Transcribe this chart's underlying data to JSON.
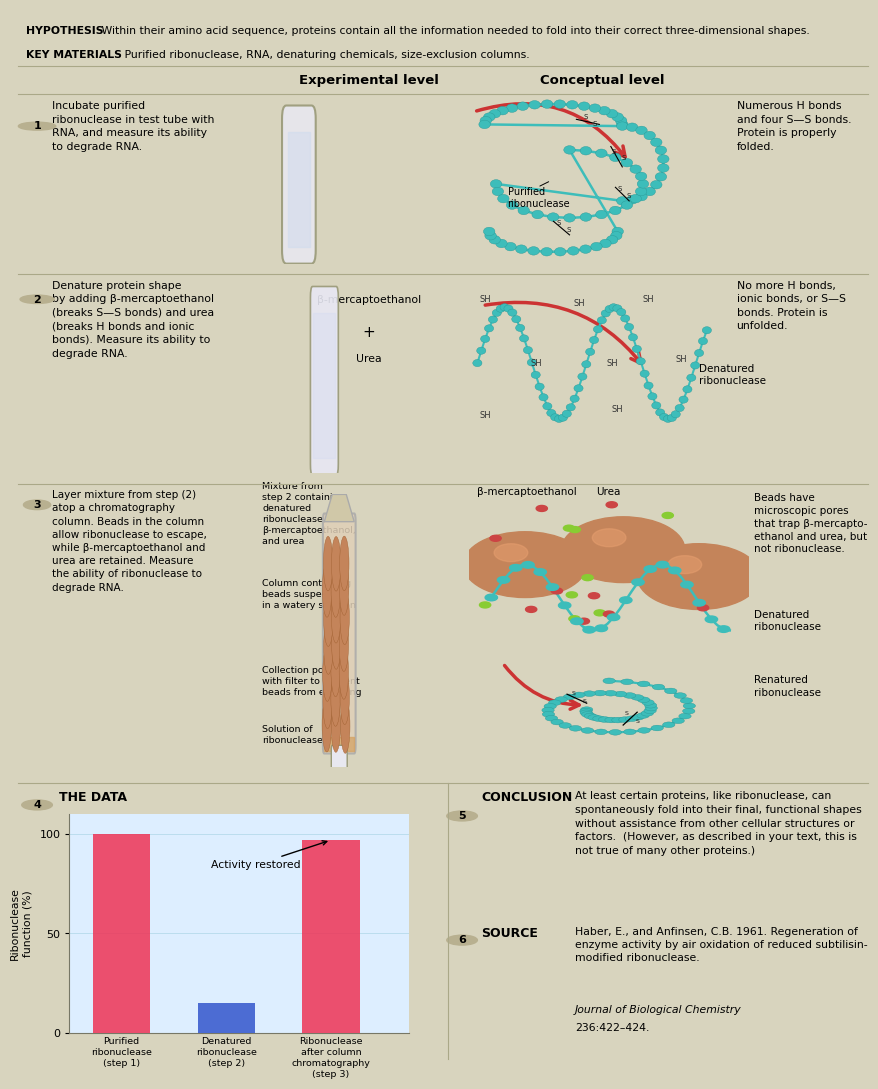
{
  "bg_tan": "#d8d4be",
  "bg_light_tan": "#e4e0cc",
  "border_color": "#aaa888",
  "teal": "#3dbdba",
  "teal_dark": "#2a9a98",
  "arrow_red": "#cc3333",
  "bead_brown": "#c4845a",
  "green_dot": "#88cc33",
  "hypothesis_bold": "HYPOTHESIS",
  "hypothesis_text": " Within their amino acid sequence, proteins contain all the information needed to fold into their correct three-dimensional shapes.",
  "keymaterials_bold": "KEY MATERIALS",
  "keymaterials_text": " Purified ribonuclease, RNA, denaturing chemicals, size-exclusion columns.",
  "exp_level_title": "Experimental level",
  "concept_level_title": "Conceptual level",
  "step1_num": "1",
  "step1_text": "Incubate purified\nribonuclease in test tube with\nRNA, and measure its ability\nto degrade RNA.",
  "step1_label_purified": "Purified\nribonuclease",
  "step1_right": "Numerous H bonds\nand four S—S bonds.\nProtein is properly\nfolded.",
  "step2_num": "2",
  "step2_text": "Denature protein shape\nby adding β-mercaptoethanol\n(breaks S—S bonds) and urea\n(breaks H bonds and ionic\nbonds). Measure its ability to\ndegrade RNA.",
  "step2_reagent1": "β-mercaptoethanol",
  "step2_reagent2": "+",
  "step2_reagent3": "Urea",
  "step2_right": "No more H bonds,\nionic bonds, or S—S\nbonds. Protein is\nunfolded.",
  "step2_label": "Denatured\nribonuclease",
  "step3_num": "3",
  "step3_text": "Layer mixture from step (2)\natop a chromatography\ncolumn. Beads in the column\nallow ribonuclease to escape,\nwhile β-mercaptoethanol and\nurea are retained. Measure\nthe ability of ribonuclease to\ndegrade RNA.",
  "step3_col_labels": [
    "Mixture from\nstep 2 containing\ndenatured\nribonuclease,\nβ-mercaptoethanol,\nand urea",
    "Column containing\nbeads suspended\nin a watery solution",
    "Collection port\nwith filter to prevent\nbeads from escaping",
    "Solution of\nribonuclease"
  ],
  "step3_right_top": "Beads have\nmicroscopic pores\nthat trap β-mercapto-\nethanol and urea, but\nnot ribonuclease.",
  "step3_beta_label": "β-mercaptoethanol",
  "step3_urea_label": "Urea",
  "step3_denatured_label": "Denatured\nribonuclease",
  "step3_renatured_label": "Renatured\nribonuclease",
  "section4_num": "4",
  "section4_title": "THE DATA",
  "bar_cats": [
    "Purified\nribonuclease\n(step 1)",
    "Denatured\nribonuclease\n(step 2)",
    "Ribonuclease\nafter column\nchromatography\n(step 3)"
  ],
  "bar_vals": [
    100,
    15,
    97
  ],
  "bar_col1": "#ee3355",
  "bar_col2": "#3355cc",
  "ytick_labels": [
    "0",
    "50",
    "100"
  ],
  "ytick_vals": [
    0,
    50,
    100
  ],
  "ylabel_text": "Ribonuclease\nfunction (%)",
  "annot_text": "Activity restored",
  "section5_num": "5",
  "conclusion_bold": "CONCLUSION",
  "conclusion_text": "At least certain proteins, like ribonuclease, can\nspontaneously fold into their final, functional shapes\nwithout assistance from other cellular structures or\nfactors.  (However, as described in your text, this is\nnot true of many other proteins.)",
  "section6_num": "6",
  "source_bold": "SOURCE",
  "source_text1": "Haber, E., and Anfinsen, C.B. 1961. Regeneration of\nenzyme activity by air oxidation of reduced subtilisin-\nmodified ribonuclease. ",
  "source_italic": "Journal of Biological Chemistry",
  "source_text2": "\n236:422–424."
}
